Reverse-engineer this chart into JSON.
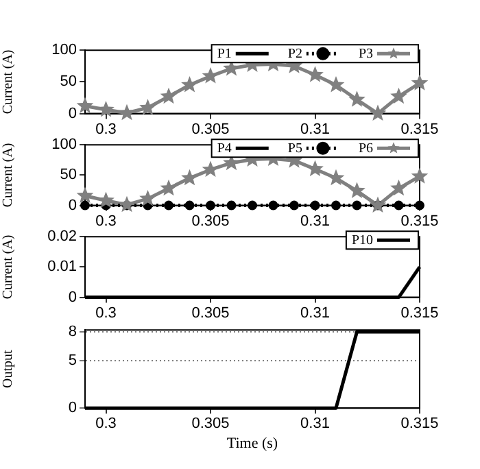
{
  "chart_data": [
    {
      "type": "line",
      "ylabel": "Current (A)",
      "xlim": [
        0.299,
        0.315
      ],
      "xticks": [
        0.3,
        0.305,
        0.31,
        0.315
      ],
      "ylim": [
        0,
        100
      ],
      "yticks": [
        0,
        50,
        100
      ],
      "legend": "top right",
      "grid": false,
      "x": [
        0.299,
        0.3,
        0.301,
        0.302,
        0.303,
        0.304,
        0.305,
        0.306,
        0.307,
        0.308,
        0.309,
        0.31,
        0.311,
        0.312,
        0.313,
        0.314,
        0.315
      ],
      "series": [
        {
          "name": "P1",
          "color": "#000000",
          "marker": "none",
          "line_style": "solid",
          "values": [
            null,
            null,
            null,
            null,
            null,
            null,
            null,
            null,
            null,
            null,
            null,
            null,
            null,
            null,
            null,
            null,
            null
          ]
        },
        {
          "name": "P2",
          "color": "#000000",
          "marker": "circle",
          "line_style": "dotted",
          "values": [
            null,
            null,
            null,
            null,
            null,
            null,
            null,
            null,
            null,
            null,
            null,
            null,
            null,
            null,
            null,
            null,
            null
          ]
        },
        {
          "name": "P3",
          "color": "#808080",
          "marker": "star",
          "line_style": "solid",
          "values": [
            12,
            6,
            1,
            9,
            27,
            45,
            59,
            71,
            77,
            78,
            75,
            61,
            45,
            22,
            0,
            27,
            48
          ]
        }
      ]
    },
    {
      "type": "line",
      "ylabel": "Current (A)",
      "xlim": [
        0.299,
        0.315
      ],
      "xticks": [
        0.3,
        0.305,
        0.31,
        0.315
      ],
      "ylim": [
        0,
        100
      ],
      "yticks": [
        0,
        50,
        100
      ],
      "legend": "top right",
      "grid": false,
      "x": [
        0.299,
        0.3,
        0.301,
        0.302,
        0.303,
        0.304,
        0.305,
        0.306,
        0.307,
        0.308,
        0.309,
        0.31,
        0.311,
        0.312,
        0.313,
        0.314,
        0.315
      ],
      "series": [
        {
          "name": "P4",
          "color": "#000000",
          "marker": "none",
          "line_style": "solid",
          "values": [
            null,
            null,
            null,
            null,
            null,
            null,
            null,
            null,
            null,
            null,
            null,
            null,
            null,
            null,
            null,
            null,
            null
          ]
        },
        {
          "name": "P5",
          "color": "#000000",
          "marker": "circle",
          "line_style": "dotted",
          "values": [
            0,
            0,
            0,
            0,
            0,
            0,
            0,
            0,
            0,
            0,
            0,
            0,
            0,
            0,
            0,
            0,
            0
          ]
        },
        {
          "name": "P6",
          "color": "#808080",
          "marker": "star",
          "line_style": "solid",
          "values": [
            16,
            8,
            1,
            11,
            28,
            45,
            59,
            70,
            76,
            77,
            74,
            60,
            45,
            24,
            0,
            28,
            48
          ]
        }
      ]
    },
    {
      "type": "line",
      "ylabel": "Current (A)",
      "xlim": [
        0.299,
        0.315
      ],
      "xticks": [
        0.3,
        0.305,
        0.31,
        0.315
      ],
      "ylim": [
        0,
        0.02
      ],
      "yticks": [
        0,
        0.01,
        0.02
      ],
      "legend": "top right",
      "grid": false,
      "series": [
        {
          "name": "P10",
          "color": "#000000",
          "marker": "none",
          "line_style": "solid",
          "x": [
            0.299,
            0.314,
            0.315
          ],
          "values": [
            0,
            0,
            0.01
          ]
        }
      ]
    },
    {
      "type": "line",
      "ylabel": "Output",
      "xlabel": "Time (s)",
      "xlim": [
        0.299,
        0.315
      ],
      "xticks": [
        0.3,
        0.305,
        0.31,
        0.315
      ],
      "ylim": [
        0,
        8.2
      ],
      "yticks": [
        0,
        5,
        8
      ],
      "grid": "y",
      "series": [
        {
          "color": "#000000",
          "marker": "none",
          "line_style": "solid",
          "x": [
            0.299,
            0.311,
            0.312,
            0.315
          ],
          "values": [
            0,
            0,
            8,
            8
          ]
        }
      ]
    }
  ]
}
